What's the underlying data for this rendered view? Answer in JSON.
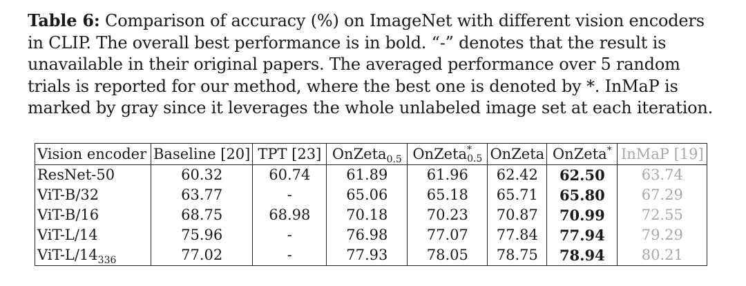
{
  "caption": {
    "label": "Table 6:",
    "text": "Comparison of accuracy (%) on ImageNet with different vision encoders in CLIP. The overall best performance is in bold. “-” denotes that the result is unavailable in their original papers. The averaged performance over 5 random trials is reported for our method, where the best one is denoted by *. InMaP is marked by gray since it leverages the whole unlabeled image set at each iteration."
  },
  "table": {
    "headers": [
      {
        "base": "Vision encoder",
        "sub": "",
        "sup": ""
      },
      {
        "base": "Baseline [20]",
        "sub": "",
        "sup": ""
      },
      {
        "base": "TPT [23]",
        "sub": "",
        "sup": ""
      },
      {
        "base": "OnZeta",
        "sub": "0.5",
        "sup": ""
      },
      {
        "base": "OnZeta",
        "sub": "0.5",
        "sup": "*"
      },
      {
        "base": "OnZeta",
        "sub": "",
        "sup": ""
      },
      {
        "base": "OnZeta",
        "sub": "",
        "sup": "*"
      },
      {
        "base": "InMaP [19]",
        "sub": "",
        "sup": ""
      }
    ],
    "rows": [
      {
        "encoder": "ResNet-50",
        "encoder_sub": "",
        "values": [
          "60.32",
          "60.74",
          "61.89",
          "61.96",
          "62.42",
          "62.50",
          "63.74"
        ]
      },
      {
        "encoder": "ViT-B/32",
        "encoder_sub": "",
        "values": [
          "63.77",
          "-",
          "65.06",
          "65.18",
          "65.71",
          "65.80",
          "67.29"
        ]
      },
      {
        "encoder": "ViT-B/16",
        "encoder_sub": "",
        "values": [
          "68.75",
          "68.98",
          "70.18",
          "70.23",
          "70.87",
          "70.99",
          "72.55"
        ]
      },
      {
        "encoder": "ViT-L/14",
        "encoder_sub": "",
        "values": [
          "75.96",
          "-",
          "76.98",
          "77.07",
          "77.84",
          "77.94",
          "79.29"
        ]
      },
      {
        "encoder": "ViT-L/14",
        "encoder_sub": "336",
        "values": [
          "77.02",
          "-",
          "77.93",
          "78.05",
          "78.75",
          "78.94",
          "80.21"
        ]
      }
    ],
    "best_column_index": 6,
    "gray_column_index": 7,
    "gray_color": "#a8a8a8"
  }
}
